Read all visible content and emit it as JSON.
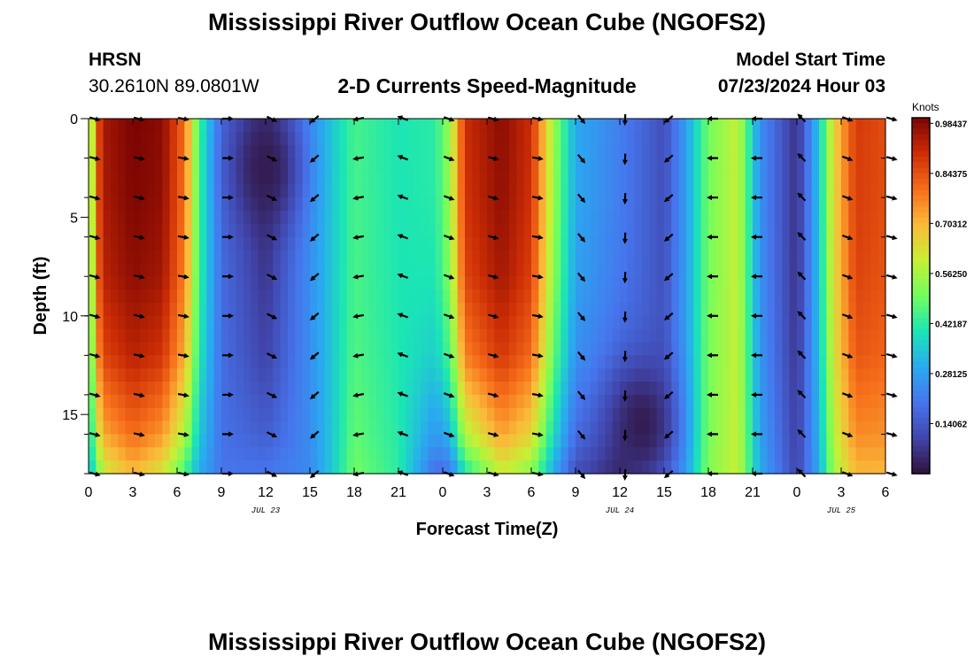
{
  "header": {
    "title": "Mississippi River Outflow Ocean Cube (NGOFS2)",
    "station": "HRSN",
    "coords": "30.2610N  89.0801W",
    "subtitle": "2-D Currents Speed-Magnitude",
    "model_start_label": "Model Start Time",
    "model_start_value": "07/23/2024 Hour 03"
  },
  "footer": {
    "title": "Mississippi River Outflow Ocean Cube (NGOFS2)"
  },
  "chart_data": {
    "type": "heatmap",
    "xlabel": "Forecast Time(Z)",
    "ylabel": "Depth (ft)",
    "x_tick_labels": [
      "0",
      "3",
      "6",
      "9",
      "12",
      "15",
      "18",
      "21",
      "0",
      "3",
      "6",
      "9",
      "12",
      "15",
      "18",
      "21",
      "0",
      "3",
      "6"
    ],
    "x_range_hours": [
      0,
      54
    ],
    "y_ticks": [
      0,
      5,
      10,
      15
    ],
    "y_range_ft": [
      0,
      18
    ],
    "day_labels": [
      {
        "label": "JUL 23",
        "hour": 12
      },
      {
        "label": "JUL 24",
        "hour": 36
      },
      {
        "label": "JUL 25",
        "hour": 51
      }
    ],
    "colorbar": {
      "unit": "Knots",
      "tick_labels": [
        "0.98437",
        "0.84375",
        "0.70312",
        "0.56250",
        "0.42187",
        "0.28125",
        "0.14062"
      ],
      "tick_values": [
        0.98437,
        0.84375,
        0.70312,
        0.5625,
        0.42187,
        0.28125,
        0.14062
      ],
      "range": [
        0,
        1.0
      ]
    },
    "speed_profile_surface": [
      {
        "hour": 0,
        "speed": 0.4
      },
      {
        "hour": 0.5,
        "speed": 0.8
      },
      {
        "hour": 1,
        "speed": 0.95
      },
      {
        "hour": 3,
        "speed": 1.0
      },
      {
        "hour": 5,
        "speed": 0.98
      },
      {
        "hour": 6.5,
        "speed": 0.8
      },
      {
        "hour": 7.5,
        "speed": 0.45
      },
      {
        "hour": 9,
        "speed": 0.18
      },
      {
        "hour": 12,
        "speed": 0.06
      },
      {
        "hour": 15,
        "speed": 0.25
      },
      {
        "hour": 16.5,
        "speed": 0.35
      },
      {
        "hour": 18,
        "speed": 0.45
      },
      {
        "hour": 21,
        "speed": 0.4
      },
      {
        "hour": 23.5,
        "speed": 0.42
      },
      {
        "hour": 24.5,
        "speed": 0.55
      },
      {
        "hour": 25.5,
        "speed": 0.9
      },
      {
        "hour": 28,
        "speed": 0.98
      },
      {
        "hour": 30,
        "speed": 0.9
      },
      {
        "hour": 31.5,
        "speed": 0.55
      },
      {
        "hour": 33,
        "speed": 0.3
      },
      {
        "hour": 36,
        "speed": 0.22
      },
      {
        "hour": 39,
        "speed": 0.12
      },
      {
        "hour": 40.5,
        "speed": 0.28
      },
      {
        "hour": 42,
        "speed": 0.5
      },
      {
        "hour": 44,
        "speed": 0.6
      },
      {
        "hour": 45.5,
        "speed": 0.25
      },
      {
        "hour": 48,
        "speed": 0.06
      },
      {
        "hour": 49.5,
        "speed": 0.35
      },
      {
        "hour": 50.5,
        "speed": 0.65
      },
      {
        "hour": 52,
        "speed": 0.88
      },
      {
        "hour": 54,
        "speed": 0.85
      }
    ],
    "speed_profile_bottom": [
      {
        "hour": 0,
        "speed": 0.3
      },
      {
        "hour": 0.5,
        "speed": 0.45
      },
      {
        "hour": 1,
        "speed": 0.6
      },
      {
        "hour": 3,
        "speed": 0.7
      },
      {
        "hour": 5,
        "speed": 0.62
      },
      {
        "hour": 6.5,
        "speed": 0.45
      },
      {
        "hour": 7.5,
        "speed": 0.3
      },
      {
        "hour": 9,
        "speed": 0.2
      },
      {
        "hour": 12,
        "speed": 0.2
      },
      {
        "hour": 15,
        "speed": 0.24
      },
      {
        "hour": 16.5,
        "speed": 0.35
      },
      {
        "hour": 18,
        "speed": 0.5
      },
      {
        "hour": 21,
        "speed": 0.42
      },
      {
        "hour": 23.5,
        "speed": 0.18
      },
      {
        "hour": 24.5,
        "speed": 0.2
      },
      {
        "hour": 25.5,
        "speed": 0.4
      },
      {
        "hour": 28,
        "speed": 0.6
      },
      {
        "hour": 30,
        "speed": 0.52
      },
      {
        "hour": 31.5,
        "speed": 0.3
      },
      {
        "hour": 33,
        "speed": 0.12
      },
      {
        "hour": 36,
        "speed": 0.05
      },
      {
        "hour": 39,
        "speed": 0.18
      },
      {
        "hour": 40.5,
        "speed": 0.3
      },
      {
        "hour": 42,
        "speed": 0.52
      },
      {
        "hour": 44,
        "speed": 0.6
      },
      {
        "hour": 45.5,
        "speed": 0.3
      },
      {
        "hour": 48,
        "speed": 0.1
      },
      {
        "hour": 49.5,
        "speed": 0.3
      },
      {
        "hour": 50.5,
        "speed": 0.55
      },
      {
        "hour": 52,
        "speed": 0.7
      },
      {
        "hour": 54,
        "speed": 0.7
      }
    ],
    "depth_profile_ft": [
      0,
      4,
      8,
      12,
      16,
      18
    ],
    "depth_weight": [
      1.0,
      0.98,
      0.92,
      0.75,
      0.35,
      0.0
    ],
    "slow_pockets": [
      {
        "hour": 12,
        "depth": 2.5,
        "speed": 0.02
      },
      {
        "hour": 37.5,
        "depth": 15.5,
        "speed": 0.02
      }
    ],
    "vector_rows_ft": [
      0,
      2,
      4,
      6,
      8,
      10,
      12,
      14,
      16,
      18
    ],
    "vector_direction_profile": [
      {
        "hour": 0,
        "angle_deg": 15
      },
      {
        "hour": 6,
        "angle_deg": 10
      },
      {
        "hour": 8,
        "angle_deg": 0
      },
      {
        "hour": 10,
        "angle_deg": 0
      },
      {
        "hour": 13,
        "angle_deg": 40
      },
      {
        "hour": 15,
        "angle_deg": 140
      },
      {
        "hour": 17,
        "angle_deg": 160
      },
      {
        "hour": 21,
        "angle_deg": 200
      },
      {
        "hour": 24,
        "angle_deg": 20
      },
      {
        "hour": 30,
        "angle_deg": 10
      },
      {
        "hour": 33,
        "angle_deg": 50
      },
      {
        "hour": 38,
        "angle_deg": 120
      },
      {
        "hour": 41,
        "angle_deg": 180
      },
      {
        "hour": 45,
        "angle_deg": 180
      },
      {
        "hour": 48,
        "angle_deg": 225
      },
      {
        "hour": 51,
        "angle_deg": 20
      },
      {
        "hour": 54,
        "angle_deg": 15
      }
    ]
  }
}
